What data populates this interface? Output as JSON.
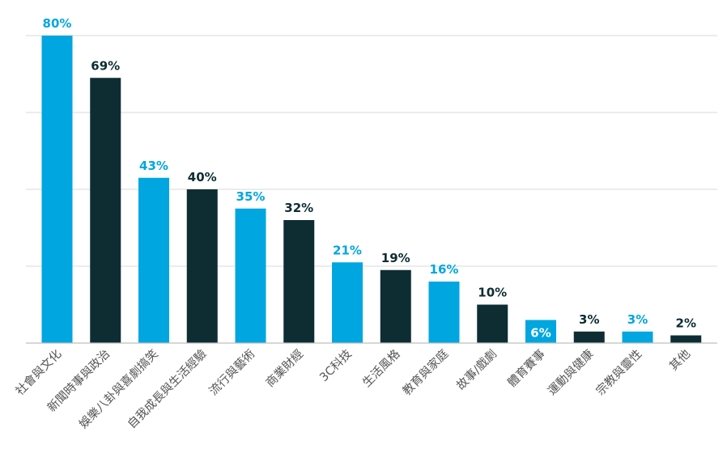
{
  "chart_data": {
    "type": "bar",
    "title": "",
    "xlabel": "",
    "ylabel": "",
    "ylim": [
      0,
      80
    ],
    "grid": true,
    "categories": [
      "社會與文化",
      "新聞時事與政治",
      "娛樂八卦與喜劇搞笑",
      "自我成長與生活經驗",
      "流行與藝術",
      "商業財經",
      "3C科技",
      "生活風格",
      "教育與家庭",
      "故事/戲劇",
      "體育賽事",
      "運動與健康",
      "宗教與靈性",
      "其他"
    ],
    "values": [
      80,
      69,
      43,
      40,
      35,
      32,
      21,
      19,
      16,
      10,
      6,
      3,
      3,
      2
    ],
    "data_labels": [
      "80%",
      "69%",
      "43%",
      "40%",
      "35%",
      "32%",
      "21%",
      "19%",
      "16%",
      "10%",
      "6%",
      "3%",
      "3%",
      "2%"
    ],
    "bar_colors": [
      "#00a6e0",
      "#0d2d33",
      "#00a6e0",
      "#0d2d33",
      "#00a6e0",
      "#0d2d33",
      "#00a6e0",
      "#0d2d33",
      "#00a6e0",
      "#0d2d33",
      "#00a6e0",
      "#0d2d33",
      "#00a6e0",
      "#0d2d33"
    ],
    "label_inside_bar": [
      false,
      false,
      false,
      false,
      false,
      false,
      false,
      false,
      false,
      false,
      true,
      false,
      false,
      false
    ]
  }
}
